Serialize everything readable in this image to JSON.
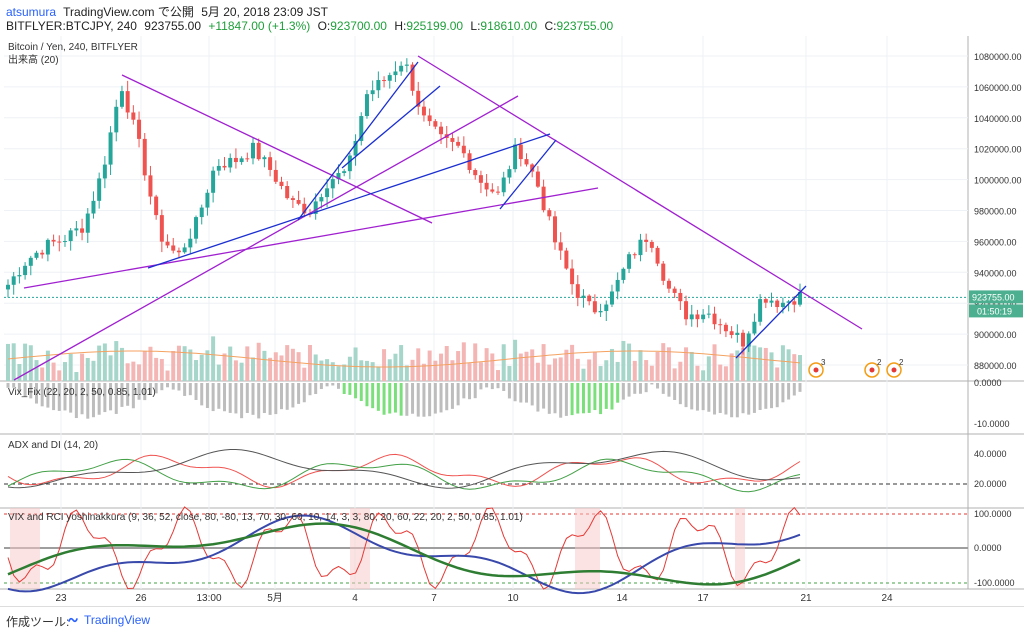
{
  "header": {
    "user": "atsumura",
    "site": "TradingView.com で公開",
    "date": "5月 20, 2018 23:09 JST",
    "symbol": "BITFLYER:BTCJPY, 240",
    "price": "923755.00",
    "change": "+11847.00 (+1.3%)",
    "o_label": "O:",
    "o": "923700.00",
    "h_label": "H:",
    "h": "925199.00",
    "l_label": "L:",
    "l": "918610.00",
    "c_label": "C:",
    "c": "923755.00"
  },
  "chart_data": {
    "type": "candlestick",
    "title": "Bitcoin / Yen, 240, BITFLYER",
    "volume_label": "出来高 (20)",
    "price_axis": {
      "ticks": [
        "1080000.00",
        "1060000.00",
        "1040000.00",
        "1020000.00",
        "1000000.00",
        "980000.00",
        "960000.00",
        "940000.00",
        "920000.00",
        "900000.00",
        "880000.00"
      ],
      "last_price": "923755.00",
      "countdown": "01:50:19"
    },
    "x_labels": [
      "23",
      "26",
      "13:00",
      "5月",
      "4",
      "7",
      "10",
      "14",
      "17",
      "21",
      "24"
    ],
    "close_path": [
      932000,
      948000,
      957000,
      962000,
      970000,
      1005000,
      1062000,
      1020000,
      965000,
      950000,
      972000,
      1010000,
      1012000,
      1020000,
      1005000,
      985000,
      980000,
      1000000,
      1005000,
      1055000,
      1065000,
      1078000,
      1040000,
      1025000,
      1020000,
      1000000,
      990000,
      1022000,
      1000000,
      960000,
      930000,
      915000,
      925000,
      950000,
      965000,
      930000,
      912000,
      915000,
      905000,
      895000,
      925000,
      920000,
      925000
    ],
    "indicators": [
      {
        "name": "Vix_Fix (22, 20, 2, 50, 0.85, 1.01)",
        "ticks": [
          "0.0000",
          "-10.0000"
        ]
      },
      {
        "name": "ADX and DI (14, 20)",
        "ticks": [
          "40.0000",
          "20.0000"
        ]
      },
      {
        "name": "VIX and RCI yoshinakkura (9, 36, 52, close, 80, -80, 13, 70, 30, 60, 10, 14, 3, 3, 80, 20, 60, 22, 20, 2, 50, 0.85, 1.01)",
        "ticks": [
          "100.0000",
          "0.0000",
          "-100.0000"
        ]
      }
    ],
    "event_badges": [
      "3",
      "2",
      "2"
    ]
  },
  "footer": {
    "label": "作成ツール:",
    "brand": "TradingView"
  },
  "colors": {
    "up": "#26a69a",
    "down": "#ef5350",
    "trend_purple": "#a020d0",
    "trend_blue": "#1a2fd0"
  }
}
